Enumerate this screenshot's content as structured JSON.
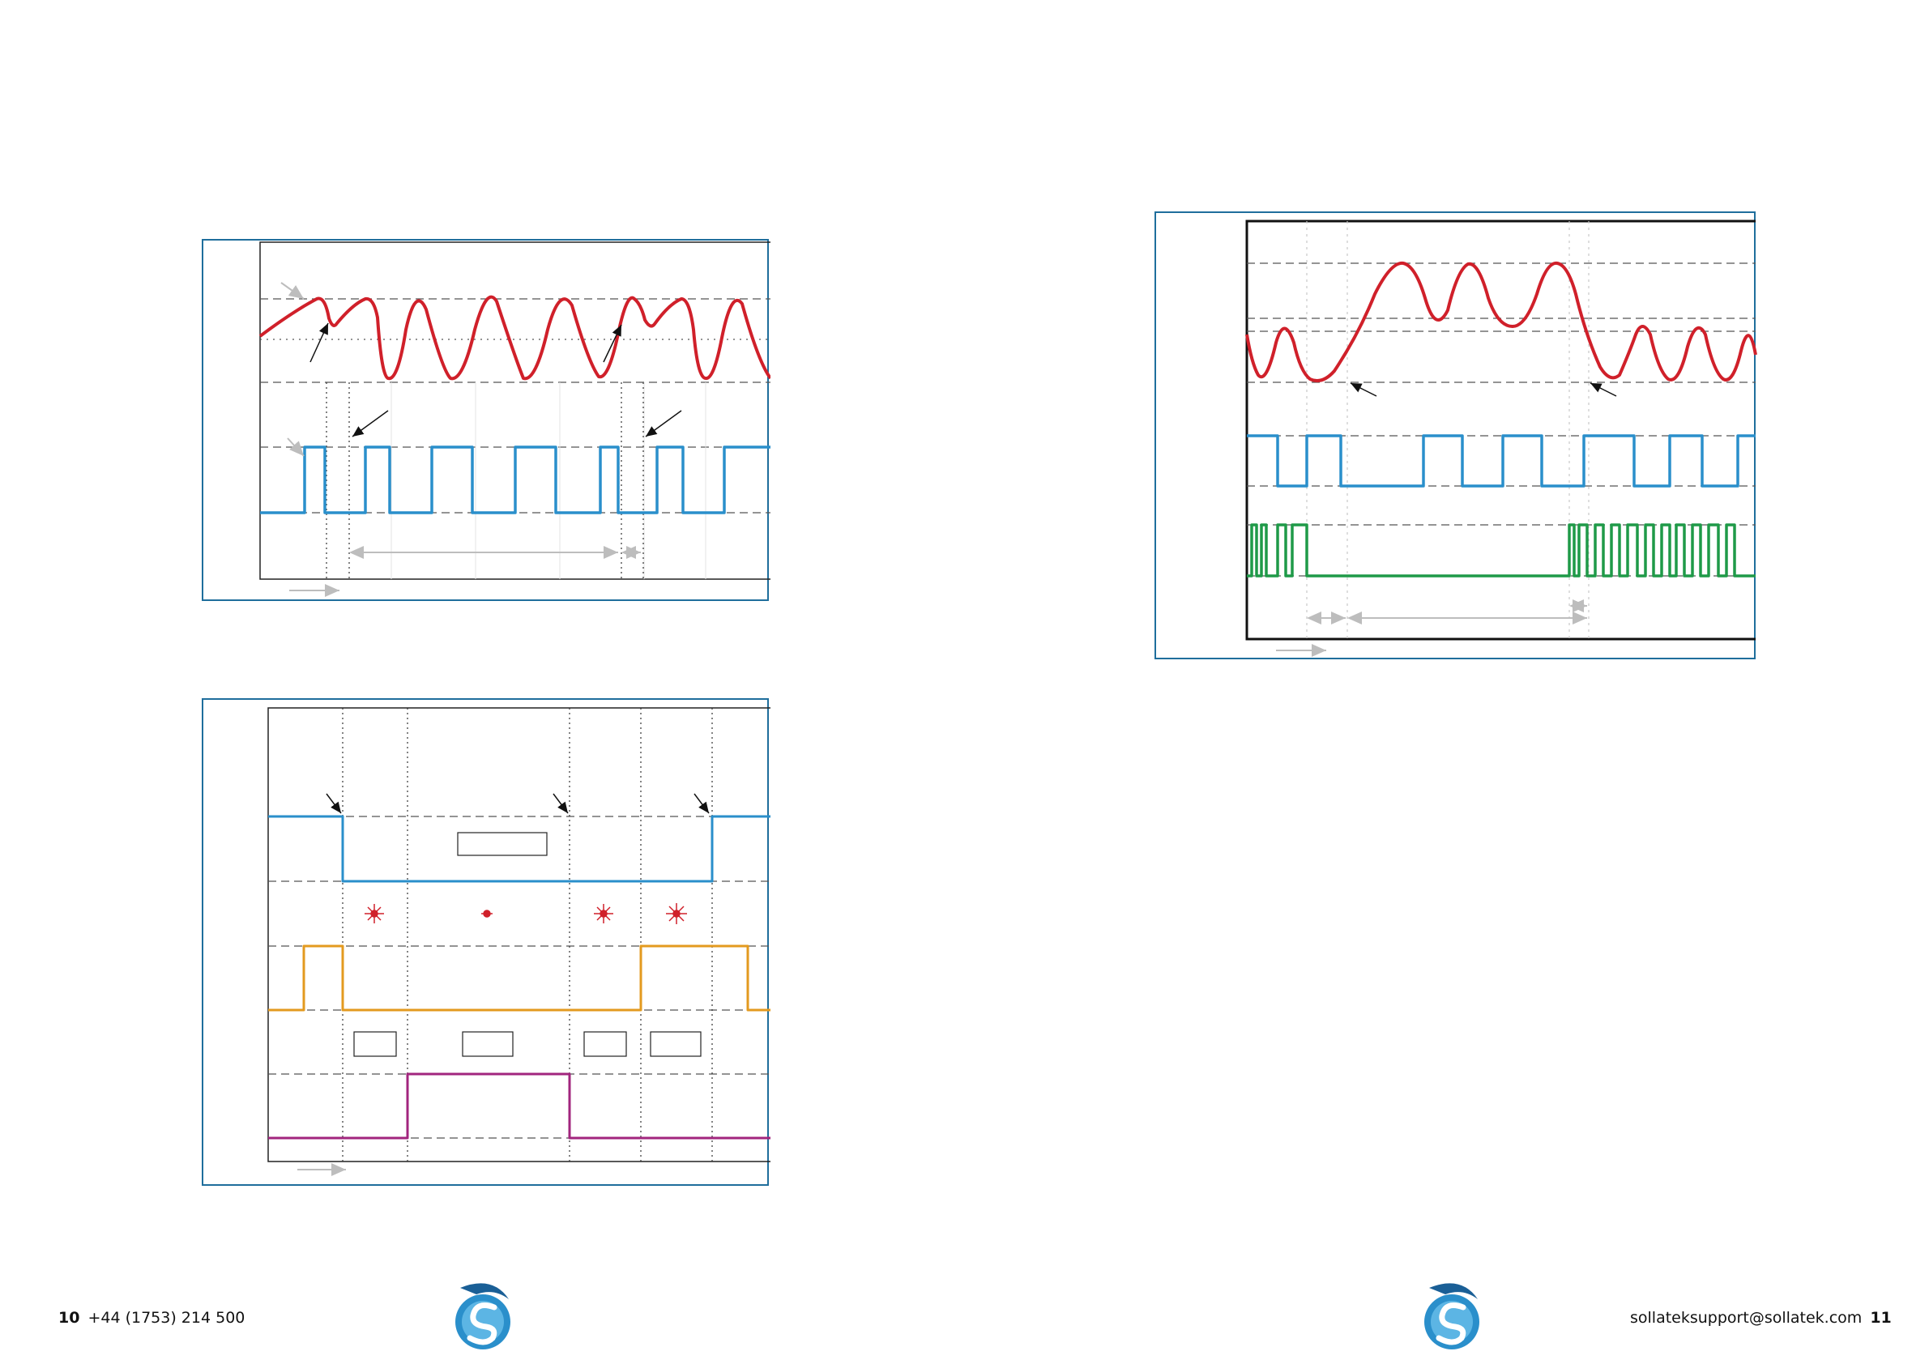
{
  "footer": {
    "left_page_number": "10",
    "phone": "+44 (1753) 214 500",
    "email": "sollateksupport@sollatek.com",
    "right_page_number": "11"
  },
  "colors": {
    "frame": "#1f6e9c",
    "red_trace": "#d0202a",
    "blue_trace": "#2a8fcb",
    "orange_trace": "#e39a1f",
    "purple_trace": "#a2257e",
    "green_trace": "#1f9a48",
    "annotation_grey": "#bdbdbd"
  },
  "diagrams": [
    {
      "id": "top-left",
      "traces": [
        "red-sine",
        "blue-square"
      ]
    },
    {
      "id": "bottom-left",
      "traces": [
        "blue-step",
        "red-sparks",
        "orange-pulse",
        "purple-pulse"
      ]
    },
    {
      "id": "top-right",
      "traces": [
        "red-sine",
        "blue-square",
        "green-pulse-train"
      ]
    }
  ],
  "icons": [
    "sollatek-logo-icon",
    "spark-icon",
    "arrow-icon"
  ]
}
